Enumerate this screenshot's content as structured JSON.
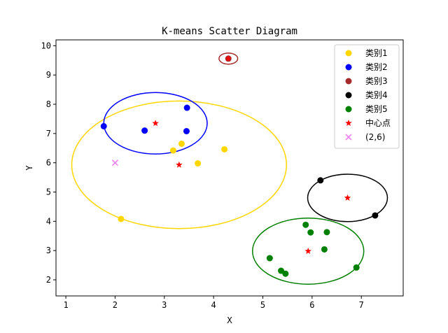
{
  "chart_data": {
    "type": "scatter",
    "title": "K-means Scatter Diagram",
    "xlabel": "X",
    "ylabel": "Y",
    "xlim": [
      0.8,
      7.85
    ],
    "ylim": [
      1.45,
      10.2
    ],
    "xticks": [
      1,
      2,
      3,
      4,
      5,
      6,
      7
    ],
    "yticks": [
      2,
      3,
      4,
      5,
      6,
      7,
      8,
      9,
      10
    ],
    "grid": false,
    "legend_position": "top-right",
    "series": [
      {
        "name": "类别1",
        "marker": "circle",
        "color": "#FFD700",
        "points": [
          [
            2.12,
            4.08
          ],
          [
            3.18,
            6.42
          ],
          [
            3.35,
            6.65
          ],
          [
            3.68,
            5.98
          ],
          [
            4.22,
            6.46
          ]
        ],
        "ellipse": {
          "center": [
            3.3,
            5.93
          ],
          "rx": 2.18,
          "ry": 2.18
        }
      },
      {
        "name": "类别2",
        "marker": "circle",
        "color": "#0000FF",
        "points": [
          [
            1.77,
            7.25
          ],
          [
            2.6,
            7.1
          ],
          [
            3.45,
            7.08
          ],
          [
            3.46,
            7.88
          ]
        ],
        "ellipse": {
          "center": [
            2.82,
            7.35
          ],
          "rx": 1.05,
          "ry": 1.05
        }
      },
      {
        "name": "类别3",
        "marker": "circle",
        "color": "#A52A2A",
        "points": [
          [
            4.3,
            9.56
          ]
        ],
        "ellipse": {
          "center": [
            4.3,
            9.56
          ],
          "rx": 0.19,
          "ry": 0.19
        }
      },
      {
        "name": "类别4",
        "marker": "circle",
        "color": "#000000",
        "points": [
          [
            6.17,
            5.4
          ],
          [
            7.28,
            4.2
          ]
        ],
        "ellipse": {
          "center": [
            6.72,
            4.8
          ],
          "rx": 0.81,
          "ry": 0.81
        }
      },
      {
        "name": "类别5",
        "marker": "circle",
        "color": "#008000",
        "points": [
          [
            5.14,
            2.74
          ],
          [
            5.37,
            2.31
          ],
          [
            5.46,
            2.21
          ],
          [
            5.87,
            3.88
          ],
          [
            5.97,
            3.62
          ],
          [
            6.25,
            3.04
          ],
          [
            6.3,
            3.63
          ],
          [
            6.9,
            2.42
          ]
        ],
        "ellipse": {
          "center": [
            5.92,
            2.98
          ],
          "rx": 1.13,
          "ry": 1.13
        }
      },
      {
        "name": "中心点",
        "marker": "star",
        "color": "#FF0000",
        "points": [
          [
            2.82,
            7.35
          ],
          [
            3.3,
            5.93
          ],
          [
            4.3,
            9.56
          ],
          [
            6.72,
            4.8
          ],
          [
            5.92,
            2.98
          ]
        ]
      },
      {
        "name": "(2,6)",
        "marker": "x",
        "color": "#EE82EE",
        "points": [
          [
            2,
            6
          ]
        ]
      }
    ]
  }
}
